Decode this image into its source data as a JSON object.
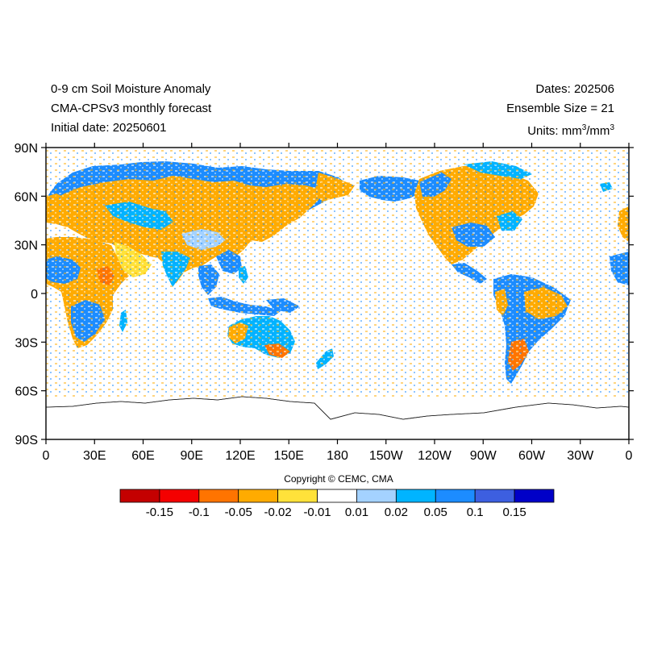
{
  "header": {
    "title_line1": "0-9 cm Soil Moisture Anomaly",
    "title_line2": "CMA-CPSv3 monthly forecast",
    "title_line3": "Initial date: 20250601",
    "dates": "Dates: 202506",
    "ensemble": "Ensemble Size = 21",
    "units_prefix": "Units: mm",
    "units_exp1": "3",
    "units_mid": "/mm",
    "units_exp2": "3"
  },
  "map": {
    "projection": "cylindrical-equidistant",
    "lat_labels": [
      "90N",
      "60N",
      "30N",
      "0",
      "30S",
      "60S",
      "90S"
    ],
    "lon_labels": [
      "0",
      "30E",
      "60E",
      "90E",
      "120E",
      "150E",
      "180",
      "150W",
      "120W",
      "90W",
      "60W",
      "30W",
      "0"
    ]
  },
  "copyright": "Copyright © CEMC, CMA",
  "colorbar": {
    "colors": [
      "#c40000",
      "#f40000",
      "#ff7400",
      "#ffab00",
      "#ffe23a",
      "#ffffff",
      "#a4d2ff",
      "#00b4ff",
      "#1c8cff",
      "#3d5fe0",
      "#0000c8"
    ],
    "labels": [
      "-0.15",
      "-0.1",
      "-0.05",
      "-0.02",
      "-0.01",
      "0.01",
      "0.02",
      "0.05",
      "0.1",
      "0.15"
    ]
  },
  "legend_colors": {
    "dry": "#ffab00",
    "dry_light": "#ffe23a",
    "wet": "#1c8cff",
    "wet_light": "#00b4ff"
  }
}
